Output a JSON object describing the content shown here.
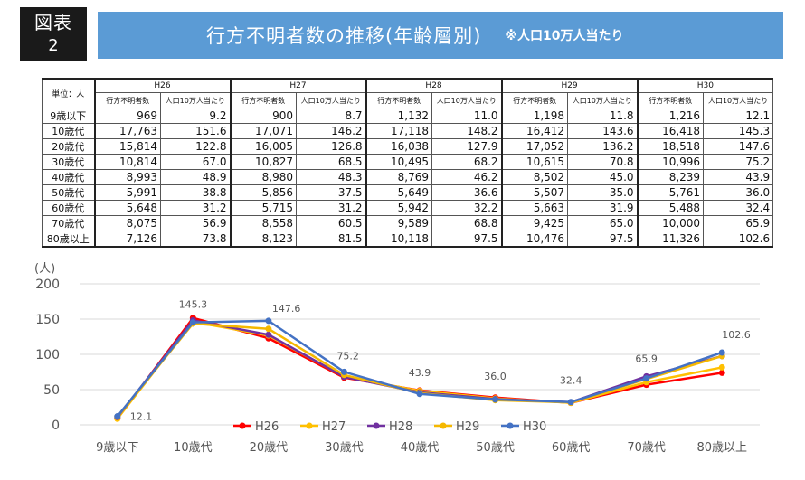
{
  "figure_label": {
    "line1": "図表",
    "line2": "2"
  },
  "title": {
    "main": "行方不明者数の推移(年齢層別)",
    "note": "※人口10万人当たり"
  },
  "table": {
    "unit_label": "単位：人",
    "years": [
      "H26",
      "H27",
      "H28",
      "H29",
      "H30"
    ],
    "sub_headers": [
      "行方不明者数",
      "人口10万人当たり"
    ],
    "rows": [
      {
        "label": "9歳以下",
        "cells": [
          "969",
          "9.2",
          "900",
          "8.7",
          "1,132",
          "11.0",
          "1,198",
          "11.8",
          "1,216",
          "12.1"
        ]
      },
      {
        "label": "10歳代",
        "cells": [
          "17,763",
          "151.6",
          "17,071",
          "146.2",
          "17,118",
          "148.2",
          "16,412",
          "143.6",
          "16,418",
          "145.3"
        ]
      },
      {
        "label": "20歳代",
        "cells": [
          "15,814",
          "122.8",
          "16,005",
          "126.8",
          "16,038",
          "127.9",
          "17,052",
          "136.2",
          "18,518",
          "147.6"
        ]
      },
      {
        "label": "30歳代",
        "cells": [
          "10,814",
          "67.0",
          "10,827",
          "68.5",
          "10,495",
          "68.2",
          "10,615",
          "70.8",
          "10,996",
          "75.2"
        ]
      },
      {
        "label": "40歳代",
        "cells": [
          "8,993",
          "48.9",
          "8,980",
          "48.3",
          "8,769",
          "46.2",
          "8,502",
          "45.0",
          "8,239",
          "43.9"
        ]
      },
      {
        "label": "50歳代",
        "cells": [
          "5,991",
          "38.8",
          "5,856",
          "37.5",
          "5,649",
          "36.6",
          "5,507",
          "35.0",
          "5,761",
          "36.0"
        ]
      },
      {
        "label": "60歳代",
        "cells": [
          "5,648",
          "31.2",
          "5,715",
          "31.2",
          "5,942",
          "32.2",
          "5,663",
          "31.9",
          "5,488",
          "32.4"
        ]
      },
      {
        "label": "70歳代",
        "cells": [
          "8,075",
          "56.9",
          "8,558",
          "60.5",
          "9,589",
          "68.8",
          "9,425",
          "65.0",
          "10,000",
          "65.9"
        ]
      },
      {
        "label": "80歳以上",
        "cells": [
          "7,126",
          "73.8",
          "8,123",
          "81.5",
          "10,118",
          "97.5",
          "10,476",
          "97.5",
          "11,326",
          "102.6"
        ]
      }
    ]
  },
  "chart_data": {
    "type": "line",
    "ylabel": "(人)",
    "ylim": [
      0,
      200
    ],
    "yticks": [
      0,
      50,
      100,
      150,
      200
    ],
    "categories": [
      "9歳以下",
      "10歳代",
      "20歳代",
      "30歳代",
      "40歳代",
      "50歳代",
      "60歳代",
      "70歳代",
      "80歳以上"
    ],
    "series": [
      {
        "name": "H26",
        "color": "#ff0000",
        "values": [
          9.2,
          151.6,
          122.8,
          67.0,
          48.9,
          38.8,
          31.2,
          56.9,
          73.8
        ]
      },
      {
        "name": "H27",
        "color": "#ffc000",
        "values": [
          8.7,
          146.2,
          126.8,
          68.5,
          48.3,
          37.5,
          31.2,
          60.5,
          81.5
        ]
      },
      {
        "name": "H28",
        "color": "#7030a0",
        "values": [
          11.0,
          148.2,
          127.9,
          68.2,
          46.2,
          36.6,
          32.2,
          68.8,
          97.5
        ]
      },
      {
        "name": "H29",
        "color": "#f5b800",
        "values": [
          11.8,
          143.6,
          136.2,
          70.8,
          45.0,
          35.0,
          31.9,
          65.0,
          97.5
        ]
      },
      {
        "name": "H30",
        "color": "#4472c4",
        "values": [
          12.1,
          145.3,
          147.6,
          75.2,
          43.9,
          36.0,
          32.4,
          65.9,
          102.6
        ]
      }
    ],
    "data_labels": {
      "series": "H30",
      "values": [
        "12.1",
        "145.3",
        "147.6",
        "75.2",
        "43.9",
        "36.0",
        "32.4",
        "65.9",
        "102.6"
      ]
    },
    "grid": true,
    "legend_position": "bottom-center"
  }
}
